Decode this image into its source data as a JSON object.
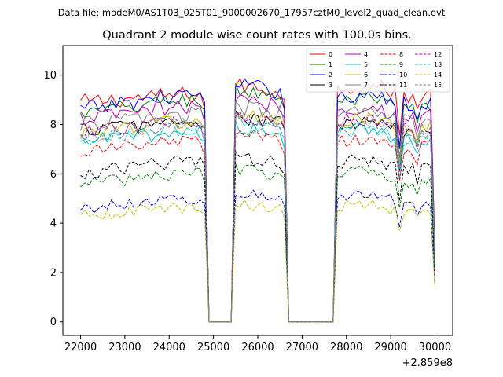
{
  "chart_data": {
    "type": "line",
    "suptitle": "Data file: modeM0/AS1T03_025T01_9000002670_17957cztM0_level2_quad_clean.evt",
    "title": "Quadrant 2 module wise count rates with 100.0s bins.",
    "xlabel": "",
    "ylabel": "",
    "offset_text": "+2.859e8",
    "xlim": [
      21600,
      30400
    ],
    "ylim": [
      -0.55,
      11.2
    ],
    "x_ticks": [
      22000,
      23000,
      24000,
      25000,
      26000,
      27000,
      28000,
      29000,
      30000
    ],
    "x_tick_labels": [
      "22000",
      "23000",
      "24000",
      "25000",
      "26000",
      "27000",
      "28000",
      "29000",
      "30000"
    ],
    "y_ticks": [
      0,
      2,
      4,
      6,
      8,
      10
    ],
    "y_tick_labels": [
      "0",
      "2",
      "4",
      "6",
      "8",
      "10"
    ],
    "legend_position": "upper-right",
    "bin_width_s": 100,
    "segments": [
      {
        "start": 22000,
        "end": 24800
      },
      {
        "start": 25450,
        "end": 26600
      },
      {
        "start": 27750,
        "end": 30000
      }
    ],
    "series": [
      {
        "name": "0",
        "color": "#ff0000",
        "dash": "solid",
        "levels": [
          8.9,
          9.2,
          9.6,
          9.4
        ]
      },
      {
        "name": "1",
        "color": "#008000",
        "dash": "solid",
        "levels": [
          8.4,
          9.0,
          9.4,
          8.8
        ]
      },
      {
        "name": "2",
        "color": "#0000ff",
        "dash": "solid",
        "levels": [
          8.6,
          9.2,
          9.6,
          9.0
        ]
      },
      {
        "name": "3",
        "color": "#000000",
        "dash": "solid",
        "levels": [
          7.8,
          8.1,
          8.3,
          7.9
        ]
      },
      {
        "name": "4",
        "color": "#bf00bf",
        "dash": "solid",
        "levels": [
          8.2,
          8.7,
          9.0,
          8.5
        ]
      },
      {
        "name": "5",
        "color": "#00bfbf",
        "dash": "solid",
        "levels": [
          7.3,
          7.7,
          7.9,
          7.6
        ]
      },
      {
        "name": "6",
        "color": "#bfbf00",
        "dash": "solid",
        "levels": [
          7.7,
          8.1,
          8.4,
          8.0
        ]
      },
      {
        "name": "7",
        "color": "#808080",
        "dash": "solid",
        "levels": [
          8.0,
          8.4,
          8.7,
          8.3
        ]
      },
      {
        "name": "8",
        "color": "#ff0000",
        "dash": "dashed",
        "levels": [
          6.9,
          7.3,
          7.6,
          7.2
        ]
      },
      {
        "name": "9",
        "color": "#008000",
        "dash": "dashed",
        "levels": [
          5.6,
          6.0,
          6.2,
          5.9
        ]
      },
      {
        "name": "10",
        "color": "#0000ff",
        "dash": "dashed",
        "levels": [
          4.6,
          5.0,
          5.2,
          5.0
        ]
      },
      {
        "name": "11",
        "color": "#000000",
        "dash": "dashed",
        "levels": [
          6.0,
          6.5,
          6.7,
          6.4
        ]
      },
      {
        "name": "12",
        "color": "#bf00bf",
        "dash": "dashed",
        "levels": [
          7.6,
          8.1,
          8.4,
          8.0
        ]
      },
      {
        "name": "13",
        "color": "#00bfbf",
        "dash": "dashed",
        "levels": [
          7.3,
          7.8,
          8.0,
          7.6
        ]
      },
      {
        "name": "14",
        "color": "#bfbf00",
        "dash": "dashed",
        "levels": [
          4.3,
          4.6,
          4.8,
          4.6
        ]
      },
      {
        "name": "15",
        "color": "#808080",
        "dash": "dashed",
        "levels": [
          7.5,
          8.0,
          8.3,
          7.9
        ]
      }
    ]
  }
}
